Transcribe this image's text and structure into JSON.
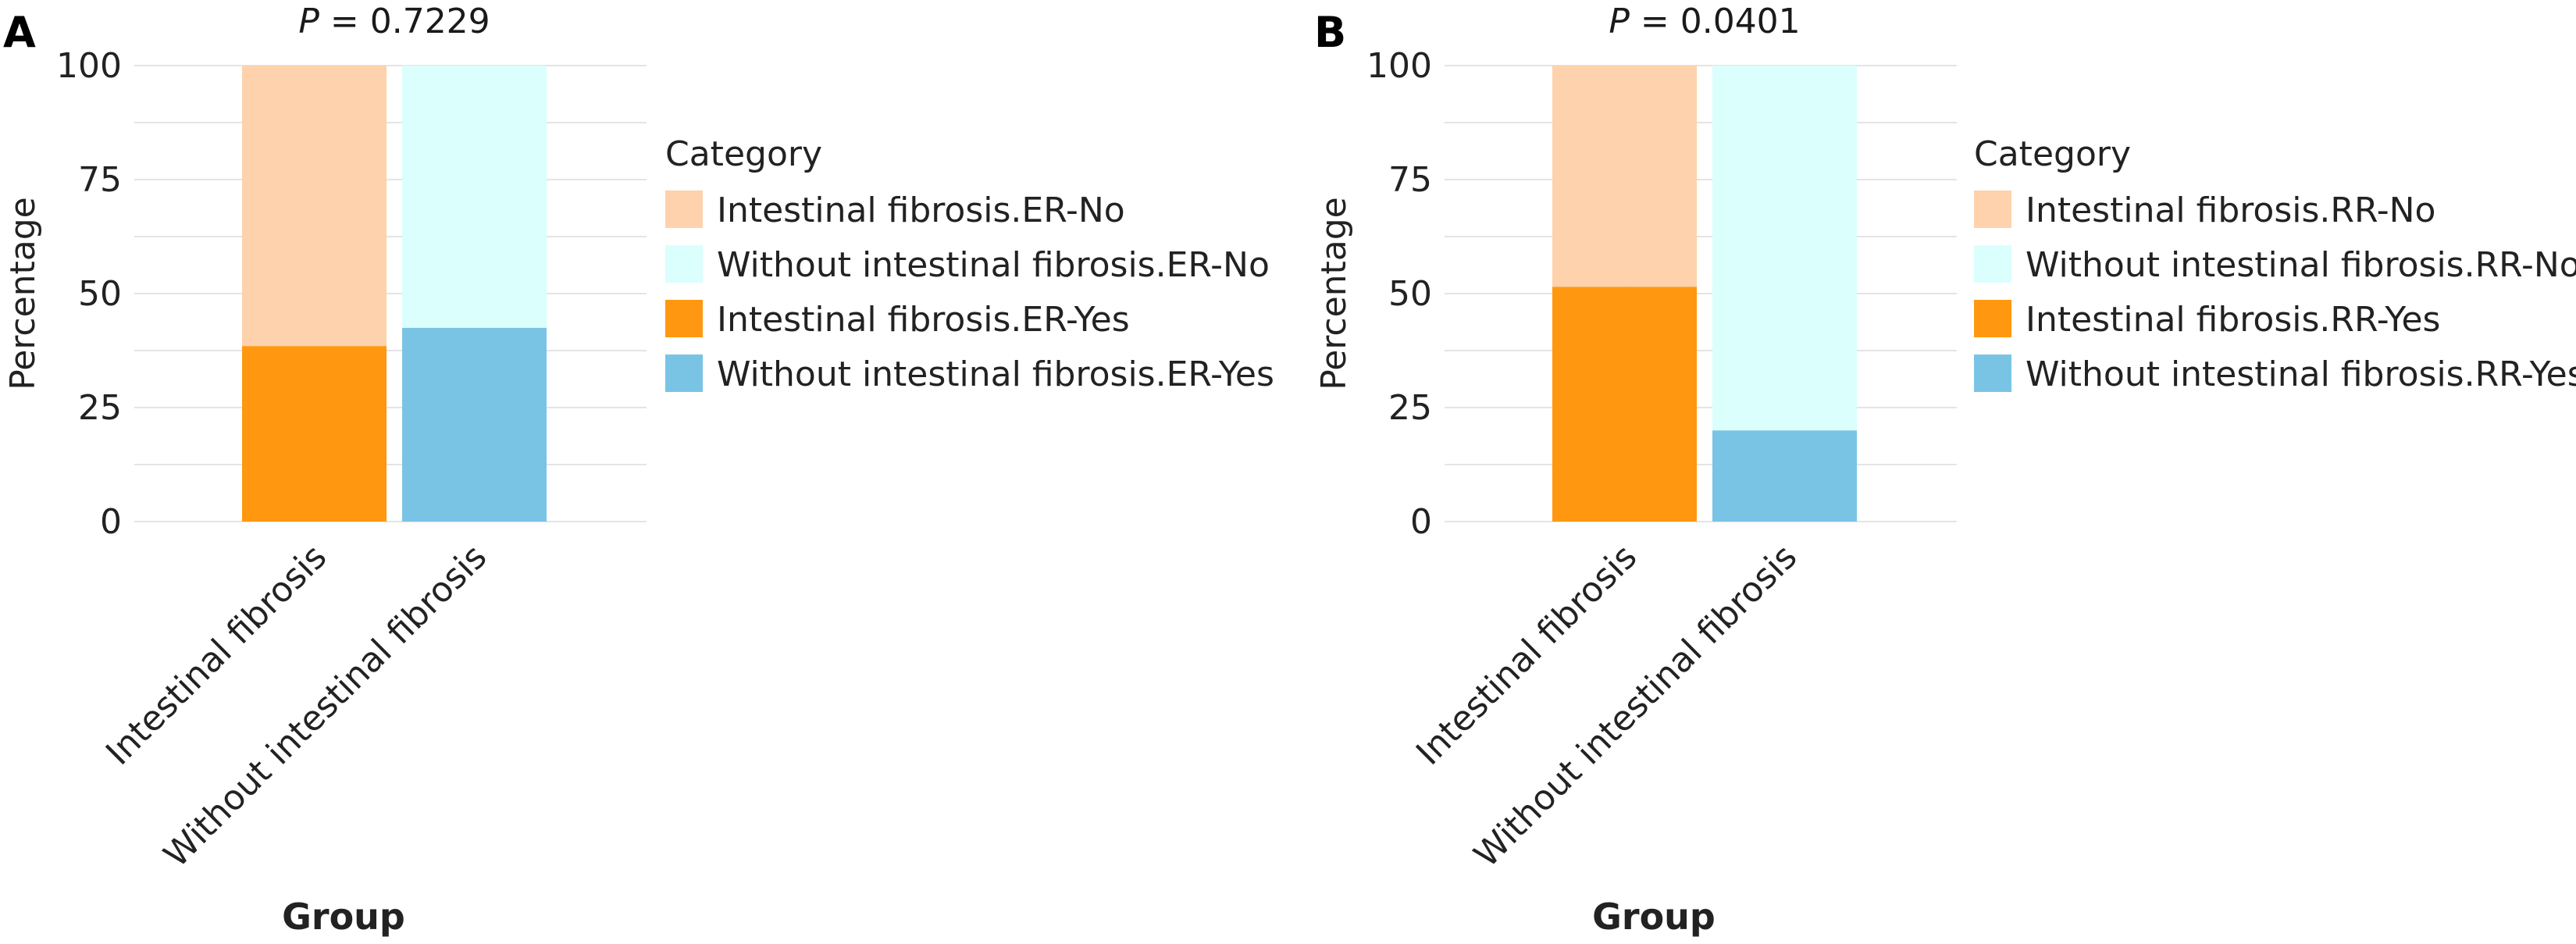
{
  "chart_data": [
    {
      "type": "bar",
      "stacked": true,
      "panel_label": "A",
      "title_italic": "P",
      "title_rest": " = 0.7229",
      "xlabel": "Group",
      "ylabel": "Percentage",
      "ylim": [
        0,
        100
      ],
      "yticks": [
        "0",
        "25",
        "50",
        "75",
        "100"
      ],
      "grid": true,
      "legend_position": "right",
      "legend_title": "Category",
      "categories": [
        "Intestinal fibrosis",
        "Without intestinal fibrosis"
      ],
      "series": [
        {
          "name": "Intestinal fibrosis.ER-No",
          "color": "#FDD2AC",
          "values": [
            61.5,
            0
          ]
        },
        {
          "name": "Without intestinal fibrosis.ER-No",
          "color": "#DAFFFD",
          "values": [
            0,
            57.5
          ]
        },
        {
          "name": "Intestinal fibrosis.ER-Yes",
          "color": "#FF9810",
          "values": [
            38.5,
            0
          ]
        },
        {
          "name": "Without intestinal fibrosis.ER-Yes",
          "color": "#79C4E5",
          "values": [
            0,
            42.5
          ]
        }
      ]
    },
    {
      "type": "bar",
      "stacked": true,
      "panel_label": "B",
      "title_italic": "P",
      "title_rest": " = 0.0401",
      "xlabel": "Group",
      "ylabel": "Percentage",
      "ylim": [
        0,
        100
      ],
      "yticks": [
        "0",
        "25",
        "50",
        "75",
        "100"
      ],
      "grid": true,
      "legend_position": "right",
      "legend_title": "Category",
      "categories": [
        "Intestinal fibrosis",
        "Without intestinal fibrosis"
      ],
      "series": [
        {
          "name": "Intestinal fibrosis.RR-No",
          "color": "#FDD2AC",
          "values": [
            48.5,
            0
          ]
        },
        {
          "name": "Without intestinal fibrosis.RR-No",
          "color": "#DAFFFD",
          "values": [
            0,
            80
          ]
        },
        {
          "name": "Intestinal fibrosis.RR-Yes",
          "color": "#FF9810",
          "values": [
            51.5,
            0
          ]
        },
        {
          "name": "Without intestinal fibrosis.RR-Yes",
          "color": "#79C4E5",
          "values": [
            0,
            20
          ]
        }
      ]
    }
  ]
}
